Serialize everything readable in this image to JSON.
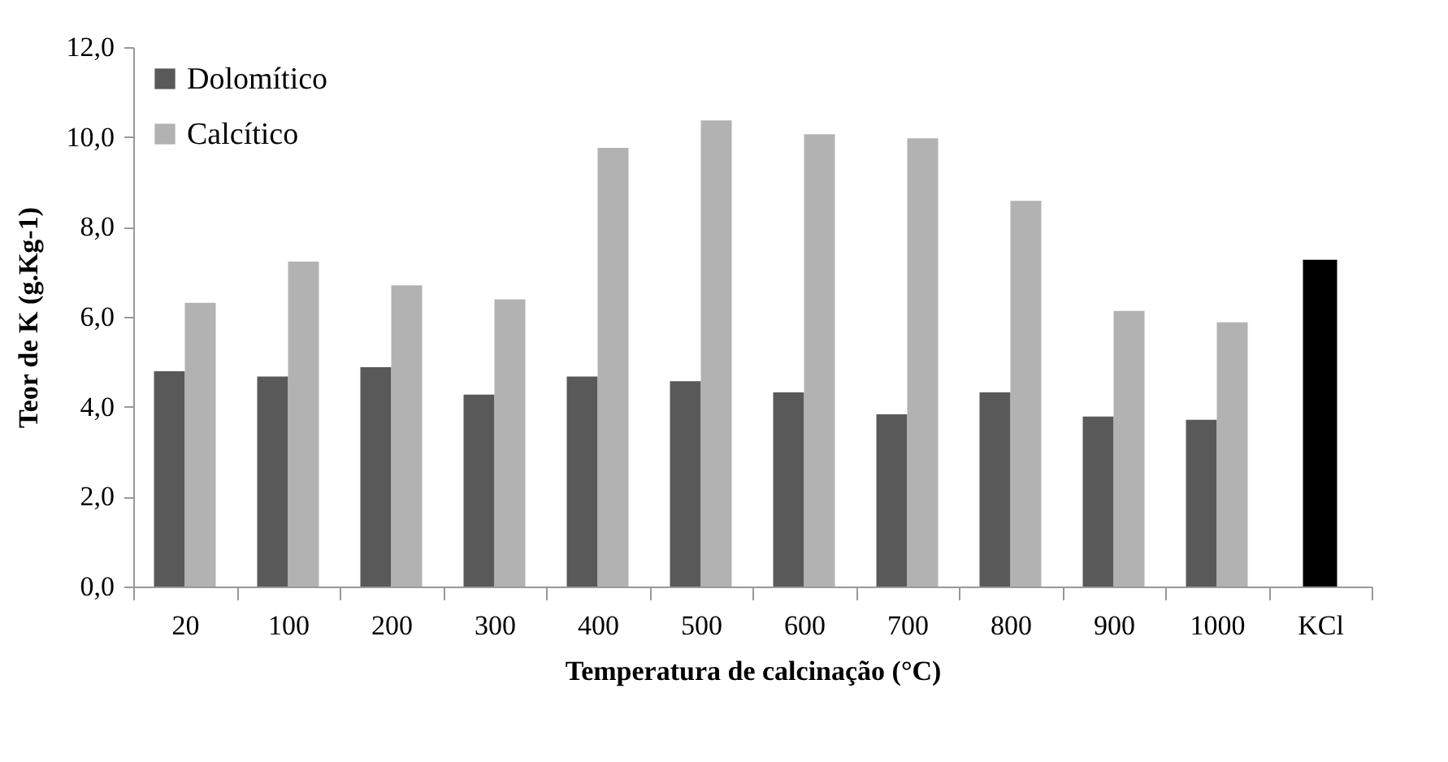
{
  "chart_data": {
    "type": "bar",
    "xlabel": "Temperatura de calcinação  (°C)",
    "ylabel": "Teor de K (g.Kg-1)",
    "categories": [
      "20",
      "100",
      "200",
      "300",
      "400",
      "500",
      "600",
      "700",
      "800",
      "900",
      "1000",
      "KCl"
    ],
    "series": [
      {
        "name": "Dolomítico",
        "color": "#595959",
        "values": [
          4.79,
          4.67,
          4.88,
          4.27,
          4.67,
          4.57,
          4.32,
          3.83,
          4.32,
          3.78,
          3.71,
          null
        ]
      },
      {
        "name": "Calcítico",
        "color": "#b2b2b2",
        "values": [
          6.31,
          7.23,
          6.7,
          6.39,
          9.76,
          10.37,
          10.06,
          9.97,
          8.58,
          6.13,
          5.88,
          null
        ]
      },
      {
        "color": "#000000",
        "values": [
          null,
          null,
          null,
          null,
          null,
          null,
          null,
          null,
          null,
          null,
          null,
          7.27
        ]
      }
    ],
    "ylim": [
      0,
      12
    ],
    "yticks": [
      {
        "value": 0,
        "label": "0,0"
      },
      {
        "value": 2,
        "label": "2,0"
      },
      {
        "value": 4,
        "label": "4,0"
      },
      {
        "value": 6,
        "label": "6,0"
      },
      {
        "value": 8,
        "label": "8,0"
      },
      {
        "value": 10,
        "label": "10,0"
      },
      {
        "value": 12,
        "label": "12,0"
      }
    ],
    "grid": false,
    "legend": "top left"
  }
}
